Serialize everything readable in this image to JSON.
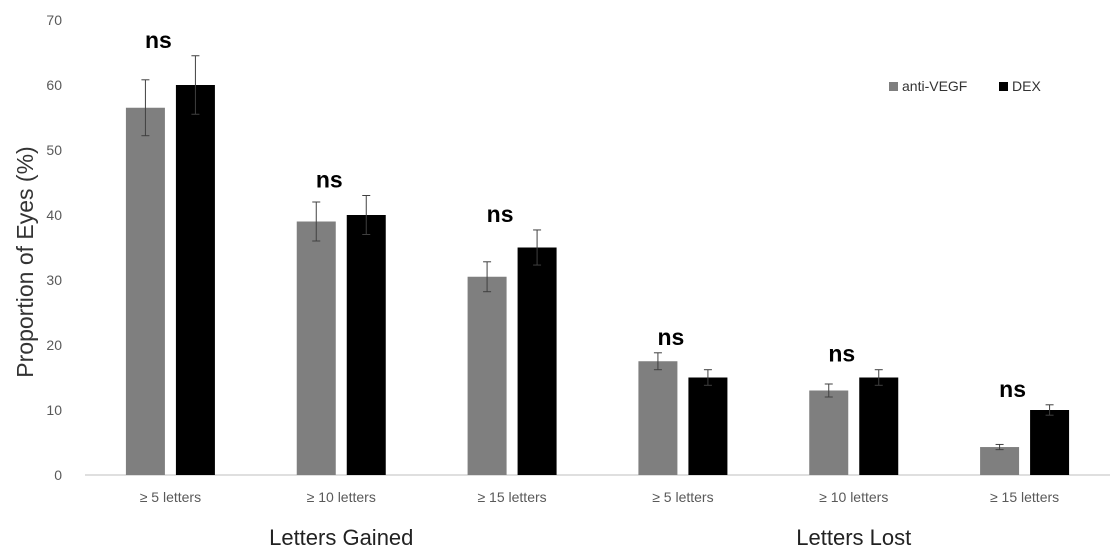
{
  "chart_data": {
    "type": "bar",
    "title": "",
    "ylabel": "Proportion  of Eyes (%)",
    "ylim": [
      0,
      70
    ],
    "yticks": [
      0,
      10,
      20,
      30,
      40,
      50,
      60,
      70
    ],
    "grid": false,
    "legend_position": "top-right",
    "categories": [
      "≥ 5 letters",
      "≥ 10 letters",
      "≥ 15 letters",
      "≥ 5 letters",
      "≥ 10 letters",
      "≥ 15 letters"
    ],
    "groups": [
      {
        "label": "Letters Gained",
        "categories": [
          0,
          1,
          2
        ]
      },
      {
        "label": "Letters Lost",
        "categories": [
          3,
          4,
          5
        ]
      }
    ],
    "series": [
      {
        "name": "anti-VEGF",
        "color": "#7f7f7f",
        "values": [
          56.5,
          39,
          30.5,
          17.5,
          13,
          4.3
        ],
        "errors": [
          4.3,
          3,
          2.3,
          1.3,
          1,
          0.4
        ]
      },
      {
        "name": "DEX",
        "color": "#000000",
        "values": [
          60,
          40,
          35,
          15,
          15,
          10
        ],
        "errors": [
          4.5,
          3,
          2.7,
          1.2,
          1.2,
          0.8
        ]
      }
    ],
    "annotations": [
      "ns",
      "ns",
      "ns",
      "ns",
      "ns",
      "ns"
    ]
  }
}
